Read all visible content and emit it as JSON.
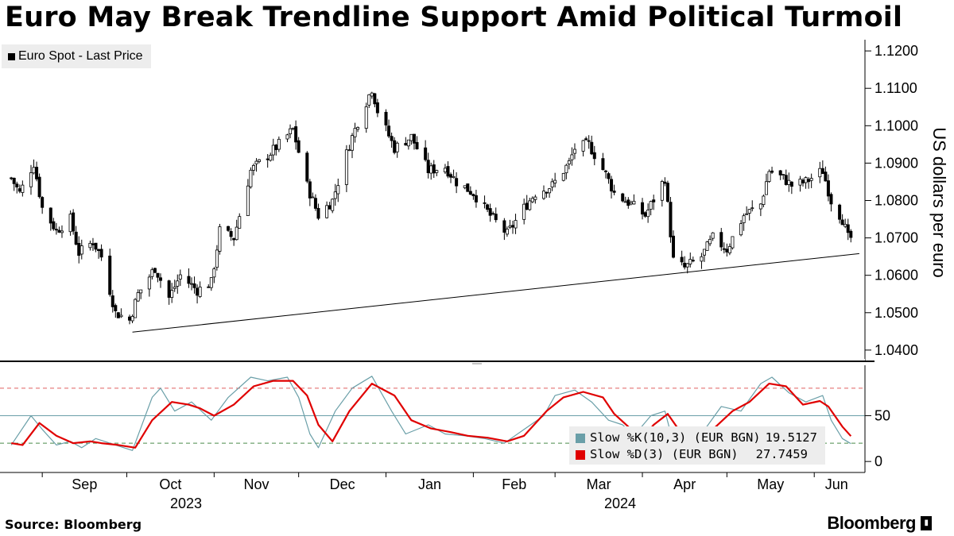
{
  "title": "Euro May Break Trendline Support Amid Political Turmoil",
  "source": "Source: Bloomberg",
  "brand": "Bloomberg",
  "chart_data": [
    {
      "type": "candlestick",
      "legend": [
        {
          "name": "Euro Spot - Last Price",
          "color": "#000000"
        }
      ],
      "ylabel": "US dollars per euro",
      "ylim": [
        1.037,
        1.123
      ],
      "yticks": [
        "1.0400",
        "1.0500",
        "1.0600",
        "1.0700",
        "1.0800",
        "1.0900",
        "1.1000",
        "1.1100",
        "1.1200"
      ],
      "x_months": [
        "Sep",
        "Oct",
        "Nov",
        "Dec",
        "Jan",
        "Feb",
        "Mar",
        "Apr",
        "May",
        "Jun"
      ],
      "x_years": [
        "2023",
        "2024"
      ],
      "close_path": [
        [
          "2023-08-21",
          1.086
        ],
        [
          "2023-08-24",
          1.082
        ],
        [
          "2023-08-29",
          1.09
        ],
        [
          "2023-09-01",
          1.078
        ],
        [
          "2023-09-06",
          1.072
        ],
        [
          "2023-09-11",
          1.075
        ],
        [
          "2023-09-14",
          1.066
        ],
        [
          "2023-09-19",
          1.069
        ],
        [
          "2023-09-22",
          1.065
        ],
        [
          "2023-09-27",
          1.05
        ],
        [
          "2023-10-02",
          1.048
        ],
        [
          "2023-10-05",
          1.055
        ],
        [
          "2023-10-11",
          1.062
        ],
        [
          "2023-10-16",
          1.054
        ],
        [
          "2023-10-20",
          1.06
        ],
        [
          "2023-10-26",
          1.056
        ],
        [
          "2023-10-31",
          1.058
        ],
        [
          "2023-11-03",
          1.072
        ],
        [
          "2023-11-08",
          1.07
        ],
        [
          "2023-11-14",
          1.088
        ],
        [
          "2023-11-20",
          1.092
        ],
        [
          "2023-11-24",
          1.095
        ],
        [
          "2023-11-29",
          1.099
        ],
        [
          "2023-12-04",
          1.084
        ],
        [
          "2023-12-08",
          1.076
        ],
        [
          "2023-12-13",
          1.08
        ],
        [
          "2023-12-19",
          1.095
        ],
        [
          "2023-12-22",
          1.101
        ],
        [
          "2023-12-27",
          1.11
        ],
        [
          "2023-12-29",
          1.104
        ],
        [
          "2024-01-04",
          1.094
        ],
        [
          "2024-01-10",
          1.097
        ],
        [
          "2024-01-16",
          1.088
        ],
        [
          "2024-01-22",
          1.089
        ],
        [
          "2024-01-26",
          1.085
        ],
        [
          "2024-02-01",
          1.082
        ],
        [
          "2024-02-07",
          1.076
        ],
        [
          "2024-02-13",
          1.071
        ],
        [
          "2024-02-19",
          1.078
        ],
        [
          "2024-02-23",
          1.082
        ],
        [
          "2024-02-29",
          1.084
        ],
        [
          "2024-03-06",
          1.09
        ],
        [
          "2024-03-08",
          1.094
        ],
        [
          "2024-03-13",
          1.095
        ],
        [
          "2024-03-19",
          1.087
        ],
        [
          "2024-03-22",
          1.082
        ],
        [
          "2024-03-28",
          1.079
        ],
        [
          "2024-04-02",
          1.076
        ],
        [
          "2024-04-09",
          1.086
        ],
        [
          "2024-04-12",
          1.064
        ],
        [
          "2024-04-16",
          1.062
        ],
        [
          "2024-04-22",
          1.065
        ],
        [
          "2024-04-26",
          1.07
        ],
        [
          "2024-05-01",
          1.067
        ],
        [
          "2024-05-07",
          1.076
        ],
        [
          "2024-05-13",
          1.079
        ],
        [
          "2024-05-16",
          1.088
        ],
        [
          "2024-05-21",
          1.086
        ],
        [
          "2024-05-24",
          1.084
        ],
        [
          "2024-05-29",
          1.085
        ],
        [
          "2024-06-04",
          1.088
        ],
        [
          "2024-06-07",
          1.08
        ],
        [
          "2024-06-11",
          1.075
        ],
        [
          "2024-06-13",
          1.07
        ],
        [
          "2024-06-14",
          1.07
        ]
      ],
      "trendline": [
        [
          "2023-10-03",
          1.0448
        ],
        [
          "2024-06-17",
          1.0658
        ]
      ]
    },
    {
      "type": "line",
      "ylim": [
        -12,
        105
      ],
      "yticks": [
        "0",
        "50"
      ],
      "reference_lines": [
        80,
        50,
        20
      ],
      "series": [
        {
          "name": "Slow %K(10,3) (EUR BGN)",
          "last": "19.5127",
          "color": "#6a9fa8",
          "values": [
            [
              "2023-08-21",
              18
            ],
            [
              "2023-08-28",
              50
            ],
            [
              "2023-09-01",
              35
            ],
            [
              "2023-09-06",
              18
            ],
            [
              "2023-09-11",
              22
            ],
            [
              "2023-09-15",
              15
            ],
            [
              "2023-09-20",
              25
            ],
            [
              "2023-09-27",
              18
            ],
            [
              "2023-10-03",
              12
            ],
            [
              "2023-10-10",
              70
            ],
            [
              "2023-10-13",
              80
            ],
            [
              "2023-10-18",
              55
            ],
            [
              "2023-10-24",
              65
            ],
            [
              "2023-10-31",
              45
            ],
            [
              "2023-11-06",
              70
            ],
            [
              "2023-11-14",
              92
            ],
            [
              "2023-11-20",
              88
            ],
            [
              "2023-11-27",
              92
            ],
            [
              "2023-12-01",
              70
            ],
            [
              "2023-12-05",
              30
            ],
            [
              "2023-12-08",
              15
            ],
            [
              "2023-12-14",
              55
            ],
            [
              "2023-12-20",
              80
            ],
            [
              "2023-12-27",
              93
            ],
            [
              "2024-01-03",
              55
            ],
            [
              "2024-01-08",
              30
            ],
            [
              "2024-01-16",
              40
            ],
            [
              "2024-01-22",
              30
            ],
            [
              "2024-01-29",
              28
            ],
            [
              "2024-02-05",
              25
            ],
            [
              "2024-02-12",
              20
            ],
            [
              "2024-02-19",
              35
            ],
            [
              "2024-02-26",
              50
            ],
            [
              "2024-03-01",
              72
            ],
            [
              "2024-03-08",
              78
            ],
            [
              "2024-03-14",
              65
            ],
            [
              "2024-03-20",
              45
            ],
            [
              "2024-03-25",
              40
            ],
            [
              "2024-03-29",
              28
            ],
            [
              "2024-04-04",
              50
            ],
            [
              "2024-04-09",
              55
            ],
            [
              "2024-04-12",
              20
            ],
            [
              "2024-04-16",
              12
            ],
            [
              "2024-04-22",
              30
            ],
            [
              "2024-04-29",
              60
            ],
            [
              "2024-05-06",
              55
            ],
            [
              "2024-05-13",
              85
            ],
            [
              "2024-05-17",
              92
            ],
            [
              "2024-05-23",
              75
            ],
            [
              "2024-05-29",
              65
            ],
            [
              "2024-06-04",
              72
            ],
            [
              "2024-06-07",
              45
            ],
            [
              "2024-06-11",
              25
            ],
            [
              "2024-06-14",
              19.5
            ]
          ]
        },
        {
          "name": "Slow %D(3) (EUR BGN)",
          "last": "27.7459",
          "color": "#e00000",
          "values": [
            [
              "2023-08-21",
              20
            ],
            [
              "2023-08-25",
              18
            ],
            [
              "2023-08-31",
              42
            ],
            [
              "2023-09-06",
              28
            ],
            [
              "2023-09-12",
              20
            ],
            [
              "2023-09-18",
              22
            ],
            [
              "2023-09-22",
              20
            ],
            [
              "2023-09-28",
              18
            ],
            [
              "2023-10-04",
              15
            ],
            [
              "2023-10-10",
              45
            ],
            [
              "2023-10-17",
              65
            ],
            [
              "2023-10-23",
              62
            ],
            [
              "2023-10-27",
              58
            ],
            [
              "2023-11-01",
              50
            ],
            [
              "2023-11-08",
              62
            ],
            [
              "2023-11-15",
              82
            ],
            [
              "2023-11-22",
              88
            ],
            [
              "2023-11-29",
              88
            ],
            [
              "2023-12-04",
              72
            ],
            [
              "2023-12-08",
              40
            ],
            [
              "2023-12-13",
              22
            ],
            [
              "2023-12-19",
              55
            ],
            [
              "2023-12-27",
              85
            ],
            [
              "2024-01-04",
              72
            ],
            [
              "2024-01-10",
              45
            ],
            [
              "2024-01-17",
              36
            ],
            [
              "2024-01-24",
              32
            ],
            [
              "2024-01-30",
              28
            ],
            [
              "2024-02-06",
              26
            ],
            [
              "2024-02-13",
              22
            ],
            [
              "2024-02-19",
              28
            ],
            [
              "2024-02-27",
              55
            ],
            [
              "2024-03-04",
              70
            ],
            [
              "2024-03-11",
              76
            ],
            [
              "2024-03-18",
              70
            ],
            [
              "2024-03-22",
              52
            ],
            [
              "2024-03-27",
              38
            ],
            [
              "2024-04-01",
              25
            ],
            [
              "2024-04-05",
              40
            ],
            [
              "2024-04-10",
              52
            ],
            [
              "2024-04-15",
              30
            ],
            [
              "2024-04-19",
              18
            ],
            [
              "2024-04-26",
              35
            ],
            [
              "2024-05-03",
              55
            ],
            [
              "2024-05-09",
              65
            ],
            [
              "2024-05-16",
              85
            ],
            [
              "2024-05-22",
              82
            ],
            [
              "2024-05-28",
              62
            ],
            [
              "2024-06-03",
              66
            ],
            [
              "2024-06-06",
              60
            ],
            [
              "2024-06-11",
              38
            ],
            [
              "2024-06-14",
              27.7
            ]
          ]
        }
      ]
    }
  ]
}
